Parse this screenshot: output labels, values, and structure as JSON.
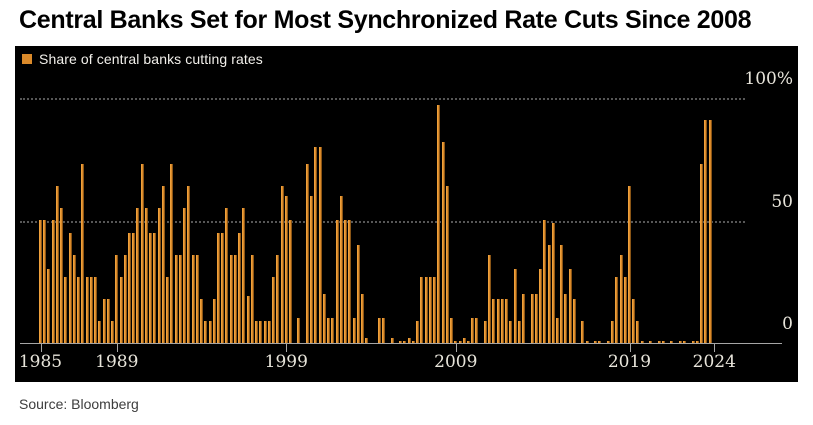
{
  "title": "Central Banks Set for Most Synchronized Rate Cuts Since 2008",
  "legend": {
    "label": "Share of central banks cutting rates"
  },
  "source": "Source: Bloomberg",
  "colors": {
    "bar": "#db8a2a",
    "bar_highlight": "#efa13c",
    "panel_background": "#000000",
    "page_background": "#ffffff",
    "gridline": "#575757",
    "axis": "#a6a6a6",
    "tick_label": "#e7e4da",
    "legend_text": "#f2f0eb",
    "title_text": "#000000",
    "source_text": "#3d3d3d"
  },
  "chart_data": {
    "type": "bar",
    "title": "Central Banks Set for Most Synchronized Rate Cuts Since 2008",
    "series_name": "Share of central banks cutting rates",
    "unit": "percent",
    "frequency": "quarterly",
    "start_period": "1985Q1",
    "end_period": "2024Q4",
    "ylim": [
      0,
      100
    ],
    "grid": "horizontal dotted lines at 50 and 100",
    "legend_position": "top-left",
    "y_axis_side": "right",
    "values": [
      50,
      50,
      30,
      50,
      64,
      55,
      27,
      45,
      36,
      27,
      73,
      27,
      27,
      27,
      9,
      18,
      18,
      9,
      36,
      27,
      36,
      45,
      45,
      55,
      73,
      55,
      45,
      45,
      55,
      64,
      27,
      73,
      36,
      36,
      55,
      64,
      36,
      36,
      18,
      9,
      9,
      18,
      45,
      45,
      55,
      36,
      36,
      45,
      55,
      19,
      36,
      9,
      9,
      9,
      9,
      27,
      36,
      64,
      60,
      50,
      0,
      10,
      0,
      73,
      60,
      80,
      80,
      20,
      10,
      10,
      50,
      60,
      50,
      50,
      10,
      40,
      20,
      2,
      0,
      0,
      10,
      10,
      0,
      2,
      0,
      1,
      1,
      2,
      1,
      9,
      27,
      27,
      27,
      27,
      97,
      82,
      64,
      10,
      1,
      1,
      2,
      1,
      10,
      10,
      0,
      9,
      36,
      18,
      18,
      18,
      18,
      9,
      30,
      9,
      20,
      0,
      20,
      20,
      30,
      50,
      40,
      49,
      10,
      40,
      20,
      30,
      18,
      0,
      9,
      1,
      0,
      1,
      1,
      0,
      1,
      9,
      27,
      36,
      27,
      64,
      18,
      9,
      1,
      0,
      1,
      0,
      1,
      1,
      0,
      1,
      0,
      1,
      1,
      0,
      1,
      1,
      73,
      91,
      91,
      0
    ],
    "y_ticks": [
      {
        "label": "100%",
        "value": 100
      },
      {
        "label": "50",
        "value": 50
      },
      {
        "label": "0",
        "value": 0
      }
    ],
    "y_gridlines": [
      100,
      50
    ],
    "x_ticks": [
      {
        "label": "1985",
        "bar_index": 0
      },
      {
        "label": "1989",
        "bar_index": 18
      },
      {
        "label": "1999",
        "bar_index": 58
      },
      {
        "label": "2009",
        "bar_index": 98
      },
      {
        "label": "2019",
        "bar_index": 139
      },
      {
        "label": "2024",
        "bar_index": 159
      }
    ],
    "notable_points": {
      "peak_2008": 97,
      "peak_2024": 91
    }
  }
}
